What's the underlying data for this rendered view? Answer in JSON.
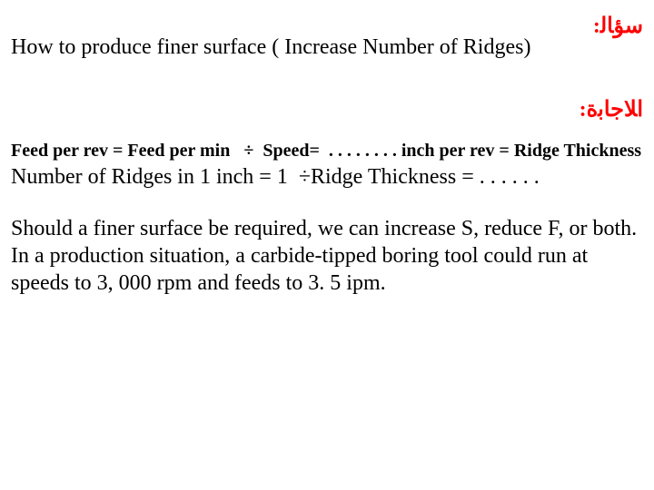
{
  "question": {
    "label_ar": "ﺳﺆﺎﻟ:",
    "text": "How to produce finer surface ( Increase Number of Ridges)"
  },
  "answer": {
    "label_ar": "ﺍﻼﺟﺎﺑﺓ:",
    "formula": "Feed per rev = Feed per min   ÷  Speed=  . . . . . . . . inch per rev = Ridge Thickness",
    "ridge_line": "Number of Ridges in 1 inch = 1  ÷Ridge Thickness = . . . . . .",
    "paragraph": "Should a finer surface be required, we can increase S, reduce F, or both. In a production situation, a carbide-tipped boring tool could run at speeds to 3, 000 rpm and feeds to 3. 5 ipm."
  },
  "colors": {
    "label": "#ff0000",
    "text": "#000000",
    "background": "#ffffff"
  }
}
